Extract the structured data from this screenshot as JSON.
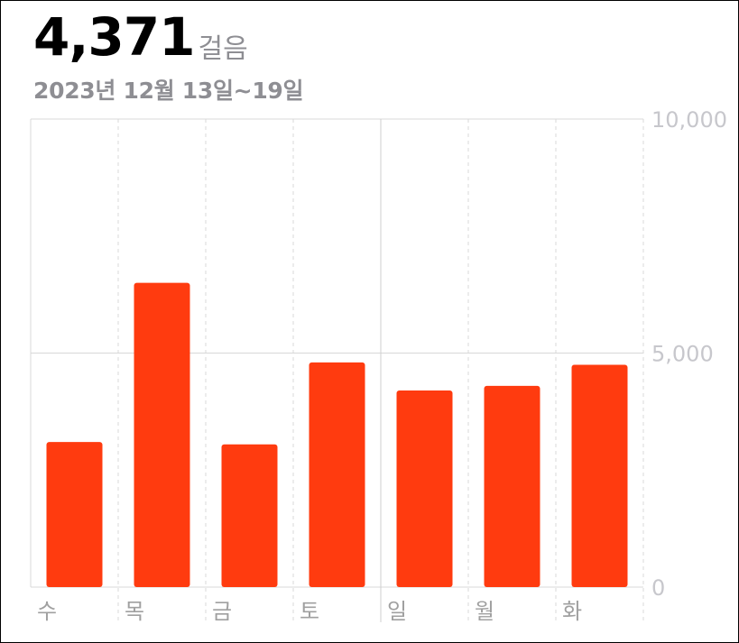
{
  "header": {
    "total_steps": "4,371",
    "unit": "걸음",
    "date_range": "2023년 12월 13일~19일"
  },
  "colors": {
    "bar": "#ff3b0f",
    "grid": "#d8d8d8",
    "axis_text": "#c7c7cc",
    "day_text": "#a0a0a0"
  },
  "chart_data": {
    "type": "bar",
    "categories": [
      "수",
      "목",
      "금",
      "토",
      "일",
      "월",
      "화"
    ],
    "values": [
      3100,
      6500,
      3050,
      4800,
      4200,
      4300,
      4750
    ],
    "ylim": [
      0,
      10000
    ],
    "y_ticks": [
      {
        "value": 0,
        "label": "0"
      },
      {
        "value": 5000,
        "label": "5,000"
      },
      {
        "value": 10000,
        "label": "10,000"
      }
    ],
    "grid": true,
    "y_axis_position": "right"
  }
}
